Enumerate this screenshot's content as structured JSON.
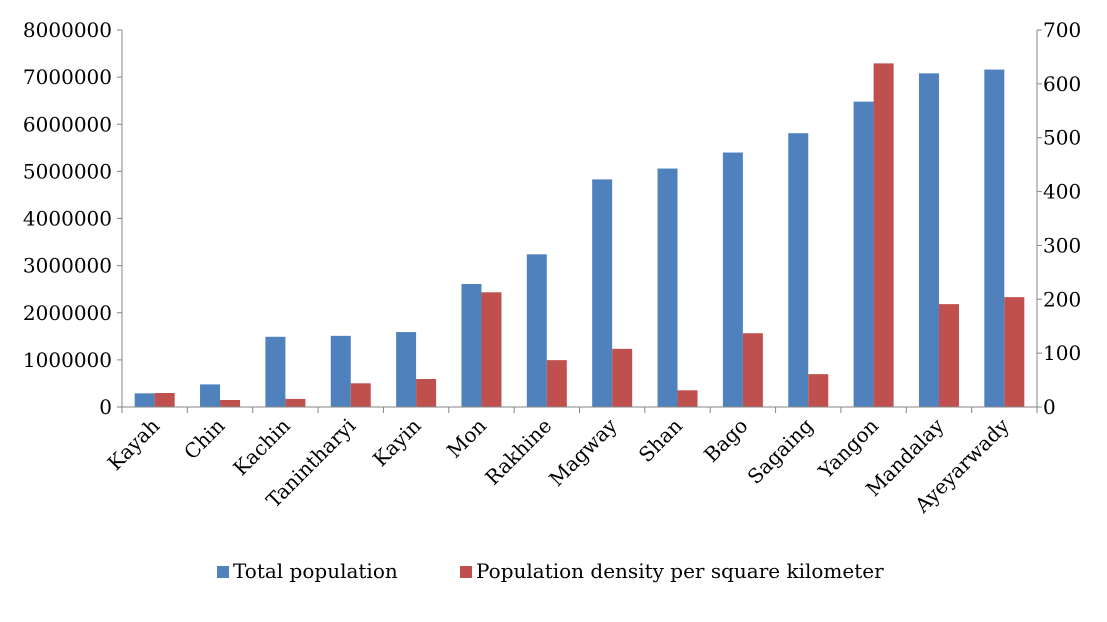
{
  "chart_data": {
    "type": "bar",
    "title": "",
    "xlabel": "",
    "ylabel": "",
    "y2label": "",
    "categories": [
      "Kayah",
      "Chin",
      "Kachin",
      "Tanintharyi",
      "Kayin",
      "Mon",
      "Rakhine",
      "Magway",
      "Shan",
      "Bago",
      "Sagaing",
      "Yangon",
      "Mandalay",
      "Ayeyarwady"
    ],
    "series": [
      {
        "name": "Total population",
        "axis": "left",
        "color": "#4f81bd",
        "values": [
          290000,
          480000,
          1490000,
          1510000,
          1590000,
          2610000,
          3240000,
          4830000,
          5060000,
          5400000,
          5810000,
          6480000,
          7080000,
          7160000
        ]
      },
      {
        "name": "Population density per square kilometer",
        "axis": "right",
        "color": "#c0504d",
        "values": [
          26,
          13,
          15,
          44,
          52,
          213,
          87,
          108,
          31,
          137,
          61,
          638,
          191,
          204
        ]
      }
    ],
    "ylim": [
      0,
      8000000
    ],
    "y2lim": [
      0,
      700
    ],
    "yticks": [
      "0",
      "1000000",
      "2000000",
      "3000000",
      "4000000",
      "5000000",
      "6000000",
      "7000000",
      "8000000"
    ],
    "y2ticks": [
      "0",
      "100",
      "200",
      "300",
      "400",
      "500",
      "600",
      "700"
    ],
    "grid": false,
    "legend_position": "bottom"
  }
}
